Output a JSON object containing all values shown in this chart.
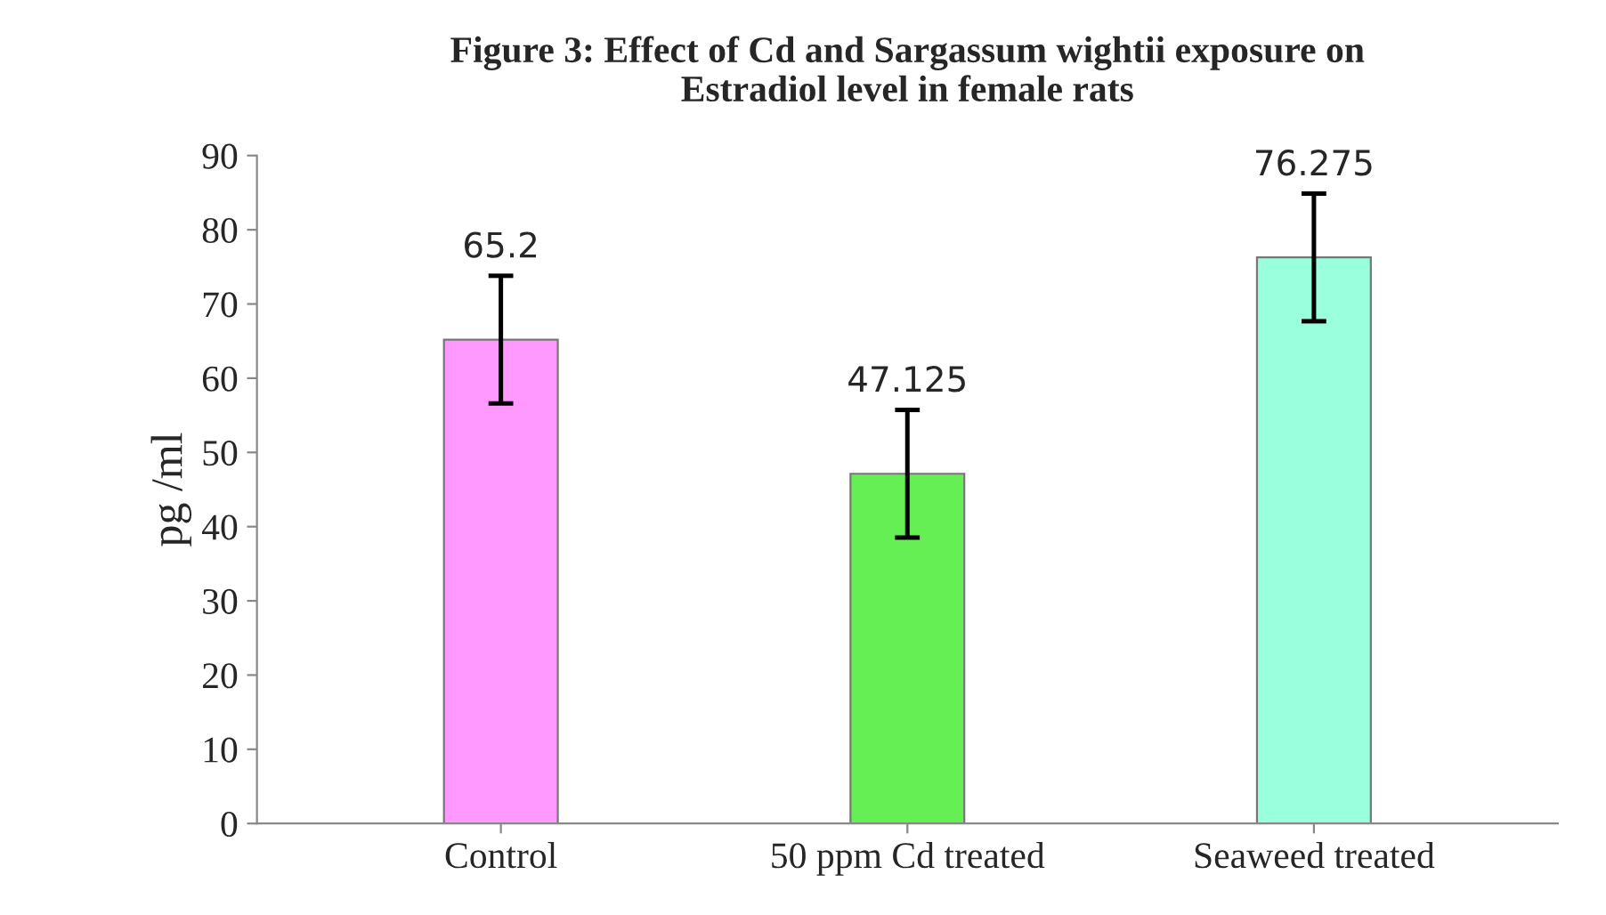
{
  "chart_data": {
    "type": "bar",
    "title": "Figure 3: Effect of Cd and Sargassum wightii exposure on\nEstradiol level in female rats",
    "ylabel": "pg /ml",
    "categories": [
      "Control",
      "50 ppm Cd treated",
      "Seaweed treated"
    ],
    "values": [
      65.2,
      47.125,
      76.275
    ],
    "colors": [
      "#ff99ff",
      "#66ee55",
      "#99ffdd"
    ],
    "errors": [
      8.6,
      8.6,
      8.6
    ],
    "data_labels": true,
    "ylim": [
      0,
      90
    ],
    "yticks": [
      0,
      10,
      20,
      30,
      40,
      50,
      60,
      70,
      80,
      90
    ],
    "grid": false,
    "legend": false
  }
}
